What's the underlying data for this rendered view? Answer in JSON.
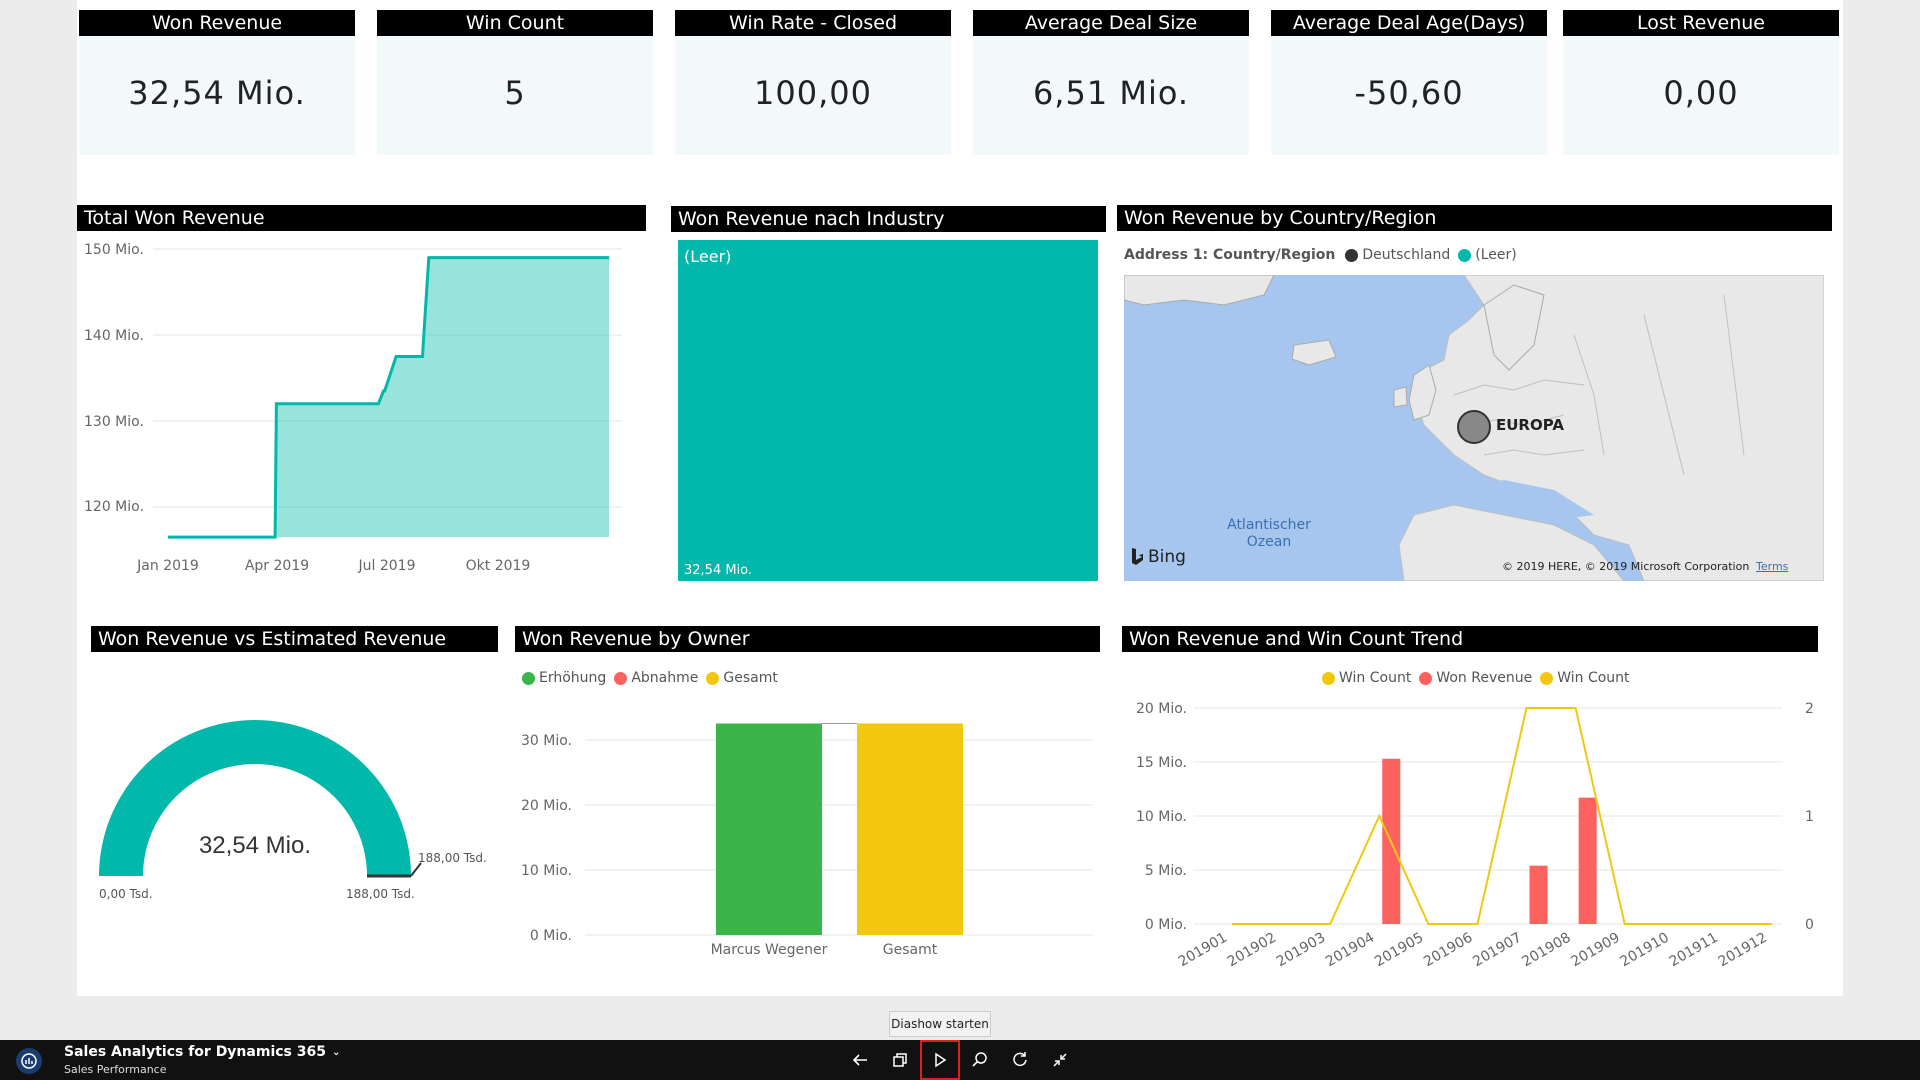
{
  "kpis": [
    {
      "title": "Won Revenue",
      "value": "32,54 Mio."
    },
    {
      "title": "Win Count",
      "value": "5"
    },
    {
      "title": "Win Rate - Closed",
      "value": "100,00"
    },
    {
      "title": "Average Deal Size",
      "value": "6,51 Mio."
    },
    {
      "title": "Average Deal Age(Days)",
      "value": "-50,60"
    },
    {
      "title": "Lost Revenue",
      "value": "0,00"
    }
  ],
  "total_won": {
    "title": "Total Won Revenue",
    "y_ticks": [
      "150 Mio.",
      "140 Mio.",
      "130 Mio.",
      "120 Mio."
    ],
    "x_ticks": [
      "Jan 2019",
      "Apr 2019",
      "Jul 2019",
      "Okt 2019"
    ]
  },
  "industry": {
    "title": "Won Revenue nach Industry",
    "tile_label": "(Leer)",
    "tile_value": "32,54 Mio."
  },
  "country": {
    "title": "Won Revenue by Country/Region",
    "legend_title": "Address 1: Country/Region",
    "legend_items": [
      {
        "label": "Deutschland",
        "color": "#333333"
      },
      {
        "label": "(Leer)",
        "color": "#01b8aa"
      }
    ],
    "map_label_europe": "EUROPA",
    "map_label_ocean": "Atlantischer Ozean",
    "bing": "Bing",
    "copyright": "© 2019 HERE, © 2019 Microsoft Corporation",
    "terms": "Terms"
  },
  "gauge": {
    "title": "Won Revenue vs Estimated Revenue",
    "value": "32,54 Mio.",
    "min": "0,00 Tsd.",
    "max": "188,00 Tsd.",
    "target": "188,00 Tsd.",
    "fill_fraction": 1.0
  },
  "owner": {
    "title": "Won Revenue by Owner",
    "legend": [
      {
        "label": "Erhöhung",
        "color": "#3ab54a"
      },
      {
        "label": "Abnahme",
        "color": "#fd625e"
      },
      {
        "label": "Gesamt",
        "color": "#f2c80f"
      }
    ]
  },
  "trend": {
    "title": "Won Revenue and Win Count Trend",
    "legend": [
      {
        "label": "Win Count",
        "color": "#f2c80f"
      },
      {
        "label": "Won Revenue",
        "color": "#fd625e"
      },
      {
        "label": "Win Count",
        "color": "#f2c80f"
      }
    ]
  },
  "chart_data": [
    {
      "type": "area",
      "title": "Total Won Revenue",
      "x": [
        "2019-01-15",
        "2019-04-10",
        "2019-04-11",
        "2019-07-01",
        "2019-07-05",
        "2019-07-06",
        "2019-07-15",
        "2019-08-05",
        "2019-08-06",
        "2019-08-10",
        "2019-12-31"
      ],
      "y": [
        116.5,
        116.5,
        132,
        132,
        133.5,
        133.5,
        137.5,
        137.5,
        140,
        149,
        149
      ],
      "ylim": [
        115,
        152
      ],
      "y_ticks": [
        120,
        130,
        140,
        150
      ],
      "color": "#01b8aa"
    },
    {
      "type": "bar",
      "title": "Won Revenue by Owner",
      "categories": [
        "Marcus Wegener",
        "Gesamt"
      ],
      "values": [
        32.54,
        32.54
      ],
      "colors": [
        "#3ab54a",
        "#f2c80f"
      ],
      "y_ticks": [
        "30 Mio.",
        "20 Mio.",
        "10 Mio.",
        "0 Mio."
      ],
      "ylim": [
        0,
        34
      ]
    },
    {
      "type": "bar",
      "title": "Won Revenue and Win Count Trend",
      "categories": [
        "201901",
        "201902",
        "201903",
        "201904",
        "201905",
        "201906",
        "201907",
        "201908",
        "201909",
        "201910",
        "201911",
        "201912"
      ],
      "series": [
        {
          "name": "Won Revenue",
          "type": "bar",
          "values": [
            0,
            0,
            0,
            15.3,
            0,
            0,
            5.4,
            11.7,
            0,
            0,
            0,
            0
          ]
        },
        {
          "name": "Win Count",
          "type": "line",
          "values": [
            0,
            0,
            0,
            1,
            0,
            0,
            2,
            2,
            0,
            0,
            0,
            0
          ]
        }
      ],
      "y_ticks": [
        "20 Mio.",
        "15 Mio.",
        "10 Mio.",
        "5 Mio.",
        "0 Mio."
      ],
      "y2_ticks": [
        "2",
        "1",
        "0"
      ],
      "ylim": [
        0,
        20
      ],
      "y2lim": [
        0,
        2
      ]
    }
  ],
  "taskbar": {
    "app_title": "Sales Analytics for Dynamics 365",
    "subtitle": "Sales Performance",
    "tooltip": "Diashow starten"
  }
}
